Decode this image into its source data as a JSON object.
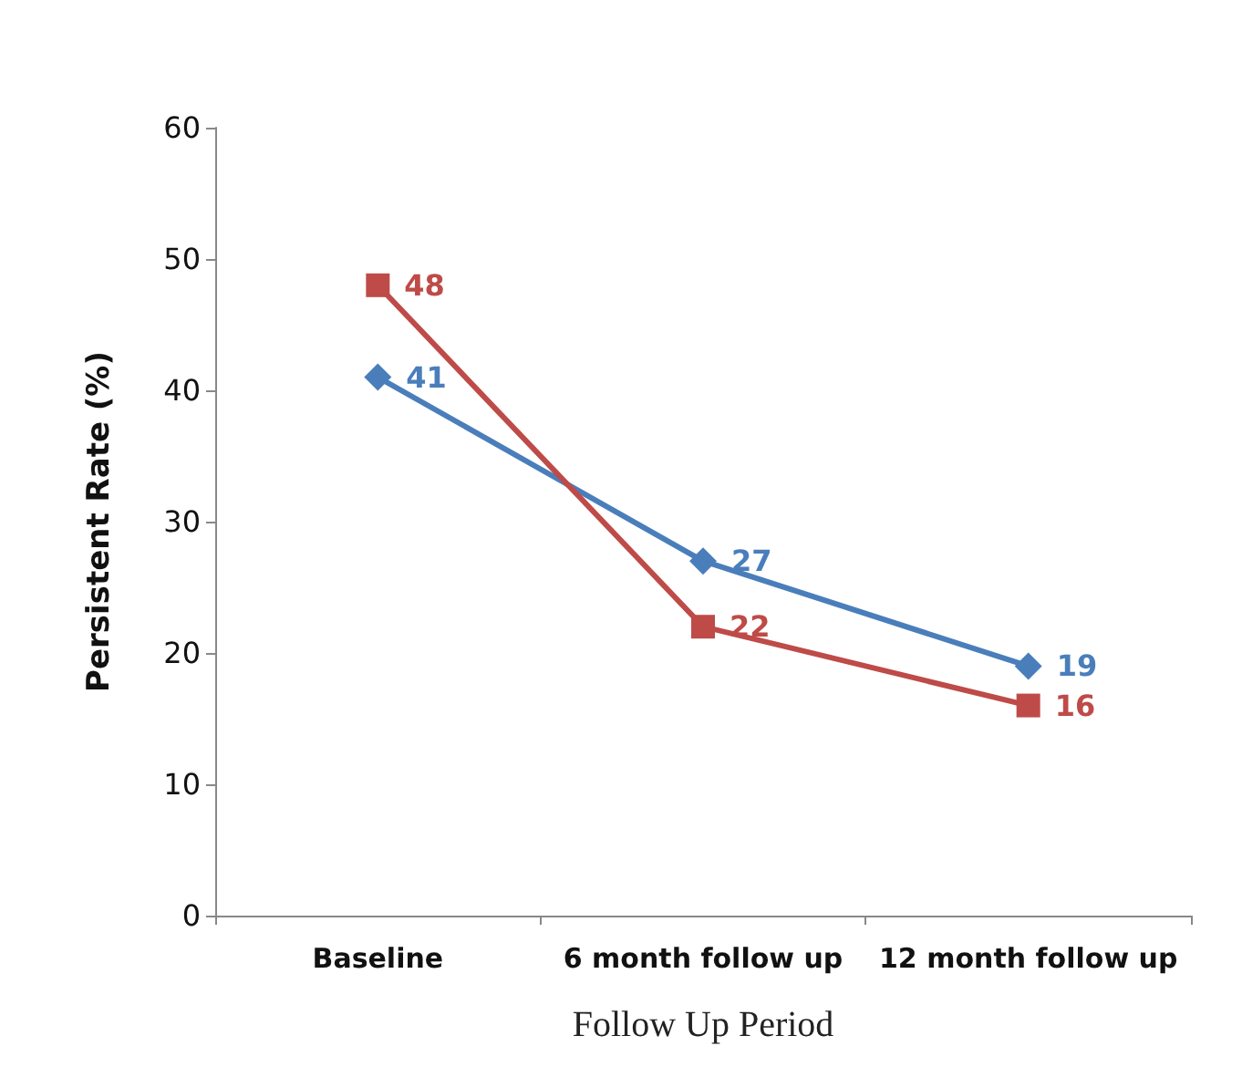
{
  "chart_data": {
    "type": "line",
    "xlabel": "Follow Up Period",
    "ylabel": "Persistent Rate (%)",
    "categories": [
      "Baseline",
      "6 month follow up",
      "12 month follow up"
    ],
    "series": [
      {
        "color": "#4a7ebb",
        "marker": "diamond",
        "values": [
          41,
          27,
          19
        ]
      },
      {
        "color": "#be4b48",
        "marker": "square",
        "values": [
          48,
          22,
          16
        ]
      }
    ],
    "ylim": [
      0,
      60
    ],
    "yticks": [
      0,
      10,
      20,
      30,
      40,
      50,
      60
    ],
    "grid": false,
    "data_labels": true,
    "line_style": "solid"
  }
}
